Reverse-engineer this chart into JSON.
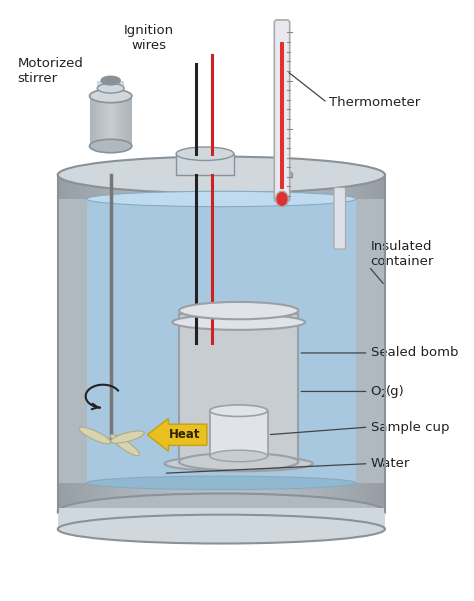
{
  "title": "",
  "bg_color": "#ffffff",
  "labels": {
    "motorized_stirrer": "Motorized\nstirrer",
    "ignition_wires": "Ignition\nwires",
    "thermometer": "Thermometer",
    "insulated_container": "Insulated\ncontainer",
    "sealed_bomb": "Sealed bomb",
    "o2_pre": "O",
    "o2_sub": "2",
    "o2_post": "(g)",
    "sample_cup": "Sample cup",
    "water": "Water",
    "heat": "Heat"
  },
  "colors": {
    "outer_shell": "#b0b8c0",
    "outer_shell_dark": "#8a9299",
    "outer_shell_light": "#d0d8de",
    "inner_water": "#a8c8e0",
    "inner_water_light": "#c0daf0",
    "bomb_body": "#c8cdd2",
    "bomb_dark": "#9aa0a6",
    "bomb_light": "#e0e4e8",
    "thermometer_fill": "#e03030",
    "wire_black": "#222222",
    "wire_red": "#cc2222",
    "heat_arrow": "#e8c020",
    "heat_arrow_dark": "#c8a010",
    "stirrer_blade": "#d8d4b0",
    "text_color": "#222222",
    "arrow_color": "#444444"
  },
  "figsize": [
    4.74,
    6.01
  ],
  "dpi": 100
}
